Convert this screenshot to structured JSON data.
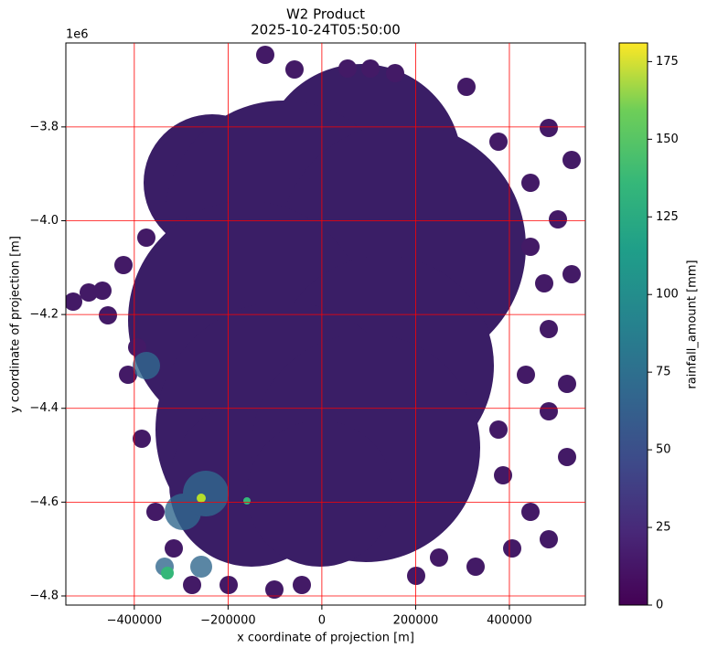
{
  "chart_data": {
    "type": "image",
    "title": "W2 Product",
    "subtitle": "2025-10-24T05:50:00",
    "x_label": "x coordinate of projection [m]",
    "y_label": "y coordinate of projection [m]",
    "y_offset_label": "1e6",
    "xlim": [
      -546000,
      562000
    ],
    "ylim": [
      -4819500,
      -3621000
    ],
    "xticks": [
      {
        "value": -400000,
        "label": "−400000"
      },
      {
        "value": -200000,
        "label": "−200000"
      },
      0,
      200000,
      400000
    ],
    "yticks": [
      {
        "value": -3800000,
        "label": "−3.8"
      },
      {
        "value": -4000000,
        "label": "−4.0"
      },
      {
        "value": -4200000,
        "label": "−4.2"
      },
      {
        "value": -4400000,
        "label": "−4.4"
      },
      {
        "value": -4600000,
        "label": "−4.6"
      },
      {
        "value": -4800000,
        "label": "−4.8"
      }
    ],
    "grid": true,
    "grid_color": "#ff0000",
    "colormap": "viridis",
    "colorbar": {
      "label": "rainfall_amount [mm]",
      "lim": [
        0,
        181
      ],
      "ticks": [
        0,
        25,
        50,
        75,
        100,
        125,
        150,
        175
      ]
    }
  }
}
